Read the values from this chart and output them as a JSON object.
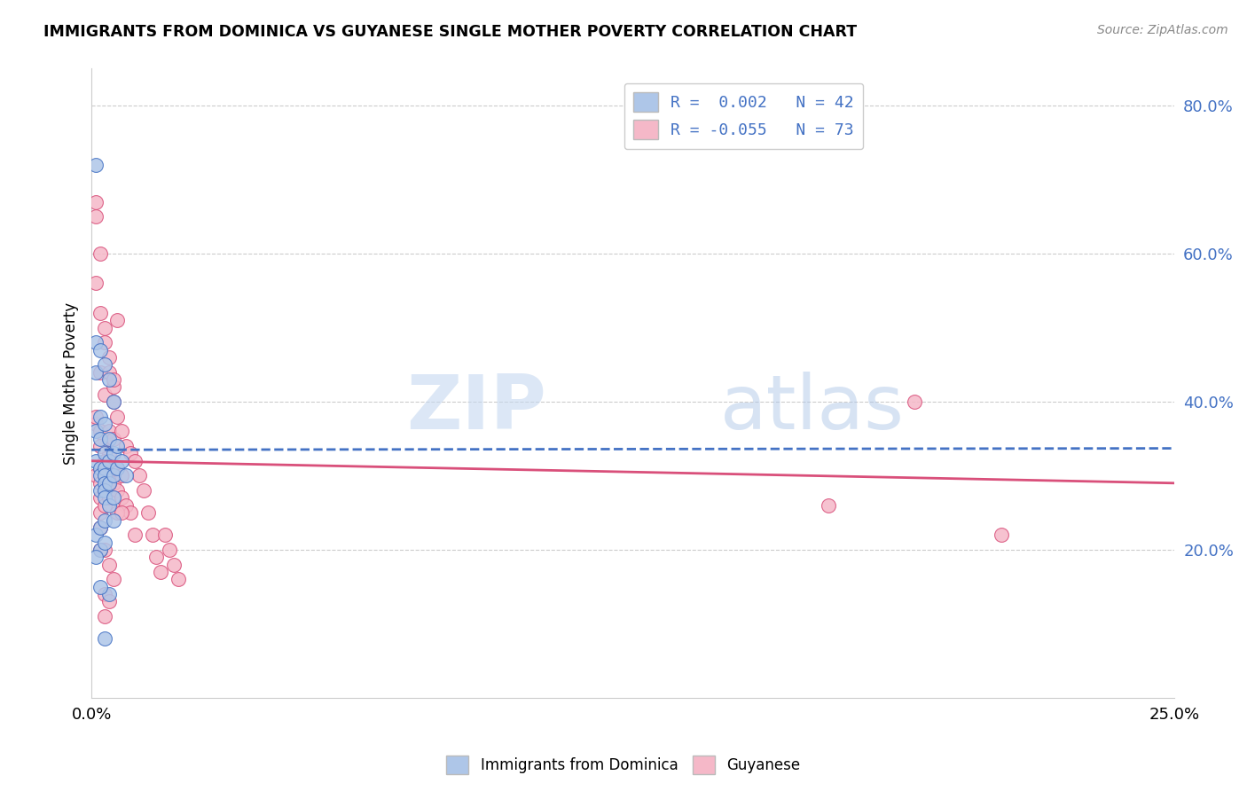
{
  "title": "IMMIGRANTS FROM DOMINICA VS GUYANESE SINGLE MOTHER POVERTY CORRELATION CHART",
  "source": "Source: ZipAtlas.com",
  "ylabel": "Single Mother Poverty",
  "ylim": [
    0.0,
    0.85
  ],
  "xlim": [
    0.0,
    0.25
  ],
  "yticks": [
    0.0,
    0.2,
    0.4,
    0.6,
    0.8
  ],
  "ytick_labels": [
    "",
    "20.0%",
    "40.0%",
    "60.0%",
    "80.0%"
  ],
  "legend_R1": "R =  0.002",
  "legend_N1": "N = 42",
  "legend_R2": "R = -0.055",
  "legend_N2": "N = 73",
  "color_blue": "#aec6e8",
  "color_pink": "#f5b8c8",
  "color_blue_line": "#4472c4",
  "color_pink_line": "#d94f7a",
  "watermark_zip": "ZIP",
  "watermark_atlas": "atlas",
  "blue_line_x": [
    0.0,
    0.25
  ],
  "blue_line_y": [
    0.335,
    0.337
  ],
  "pink_line_x": [
    0.0,
    0.25
  ],
  "pink_line_y": [
    0.32,
    0.29
  ],
  "blue_x": [
    0.001,
    0.001,
    0.001,
    0.001,
    0.002,
    0.002,
    0.002,
    0.002,
    0.002,
    0.002,
    0.003,
    0.003,
    0.003,
    0.003,
    0.003,
    0.003,
    0.003,
    0.003,
    0.004,
    0.004,
    0.004,
    0.004,
    0.004,
    0.005,
    0.005,
    0.005,
    0.005,
    0.006,
    0.006,
    0.007,
    0.001,
    0.002,
    0.003,
    0.004,
    0.001,
    0.002,
    0.003,
    0.005,
    0.008,
    0.003,
    0.002,
    0.001
  ],
  "blue_y": [
    0.48,
    0.44,
    0.36,
    0.32,
    0.47,
    0.38,
    0.35,
    0.31,
    0.3,
    0.28,
    0.45,
    0.37,
    0.33,
    0.31,
    0.3,
    0.29,
    0.28,
    0.27,
    0.43,
    0.35,
    0.32,
    0.29,
    0.26,
    0.4,
    0.33,
    0.3,
    0.27,
    0.34,
    0.31,
    0.32,
    0.22,
    0.2,
    0.21,
    0.14,
    0.19,
    0.23,
    0.24,
    0.24,
    0.3,
    0.08,
    0.15,
    0.72
  ],
  "pink_x": [
    0.001,
    0.001,
    0.001,
    0.001,
    0.002,
    0.002,
    0.002,
    0.002,
    0.002,
    0.002,
    0.002,
    0.003,
    0.003,
    0.003,
    0.003,
    0.003,
    0.003,
    0.003,
    0.004,
    0.004,
    0.004,
    0.004,
    0.004,
    0.005,
    0.005,
    0.005,
    0.005,
    0.006,
    0.006,
    0.006,
    0.007,
    0.007,
    0.007,
    0.008,
    0.008,
    0.009,
    0.009,
    0.01,
    0.01,
    0.011,
    0.012,
    0.013,
    0.014,
    0.015,
    0.016,
    0.017,
    0.018,
    0.019,
    0.02,
    0.001,
    0.002,
    0.003,
    0.004,
    0.005,
    0.006,
    0.001,
    0.002,
    0.003,
    0.004,
    0.005,
    0.002,
    0.003,
    0.004,
    0.003,
    0.005,
    0.004,
    0.003,
    0.002,
    0.006,
    0.007,
    0.19,
    0.21,
    0.17
  ],
  "pink_y": [
    0.65,
    0.56,
    0.37,
    0.3,
    0.52,
    0.44,
    0.36,
    0.31,
    0.29,
    0.27,
    0.25,
    0.48,
    0.41,
    0.35,
    0.32,
    0.3,
    0.28,
    0.26,
    0.44,
    0.36,
    0.33,
    0.3,
    0.27,
    0.42,
    0.35,
    0.31,
    0.29,
    0.38,
    0.31,
    0.28,
    0.36,
    0.3,
    0.27,
    0.34,
    0.26,
    0.33,
    0.25,
    0.32,
    0.22,
    0.3,
    0.28,
    0.25,
    0.22,
    0.19,
    0.17,
    0.22,
    0.2,
    0.18,
    0.16,
    0.67,
    0.6,
    0.5,
    0.46,
    0.43,
    0.51,
    0.38,
    0.34,
    0.32,
    0.29,
    0.4,
    0.23,
    0.2,
    0.18,
    0.14,
    0.16,
    0.13,
    0.11,
    0.2,
    0.25,
    0.25,
    0.4,
    0.22,
    0.26
  ]
}
